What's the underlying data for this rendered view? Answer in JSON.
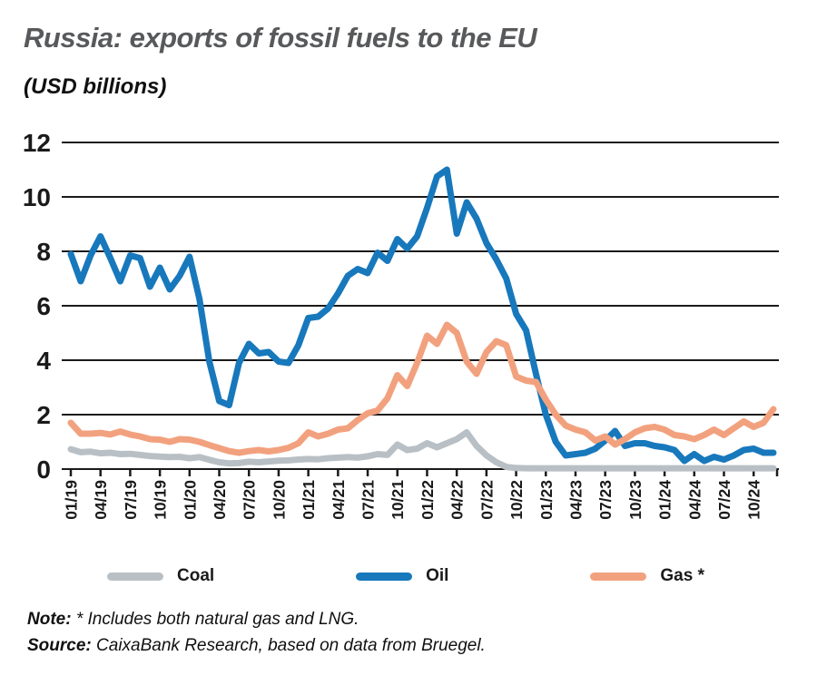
{
  "header": {
    "title": "Russia: exports of fossil fuels to the EU",
    "subtitle": "(USD billions)"
  },
  "chart_data": {
    "type": "line",
    "title": "Russia: exports of fossil fuels to the EU",
    "ylabel": "USD billions",
    "ylim": [
      0,
      12
    ],
    "yticks": [
      0,
      2,
      4,
      6,
      8,
      10,
      12
    ],
    "grid": "horizontal",
    "legend_position": "bottom",
    "x_tick_every": 3,
    "x": [
      "01/19",
      "02/19",
      "03/19",
      "04/19",
      "05/19",
      "06/19",
      "07/19",
      "08/19",
      "09/19",
      "10/19",
      "11/19",
      "12/19",
      "01/20",
      "02/20",
      "03/20",
      "04/20",
      "05/20",
      "06/20",
      "07/20",
      "08/20",
      "09/20",
      "10/20",
      "11/20",
      "12/20",
      "01/21",
      "02/21",
      "03/21",
      "04/21",
      "05/21",
      "06/21",
      "07/21",
      "08/21",
      "09/21",
      "10/21",
      "11/21",
      "12/21",
      "01/22",
      "02/22",
      "03/22",
      "04/22",
      "05/22",
      "06/22",
      "07/22",
      "08/22",
      "09/22",
      "10/22",
      "11/22",
      "12/22",
      "01/23",
      "02/23",
      "03/23",
      "04/23",
      "05/23",
      "06/23",
      "07/23",
      "08/23",
      "09/23",
      "10/23",
      "11/23",
      "12/23",
      "01/24",
      "02/24",
      "03/24",
      "04/24",
      "05/24",
      "06/24",
      "07/24",
      "08/24",
      "09/24",
      "10/24",
      "11/24",
      "12/24"
    ],
    "series": [
      {
        "name": "Coal",
        "color": "#b9c0c5",
        "values": [
          0.73,
          0.62,
          0.64,
          0.58,
          0.6,
          0.55,
          0.56,
          0.52,
          0.48,
          0.46,
          0.44,
          0.45,
          0.4,
          0.44,
          0.34,
          0.25,
          0.21,
          0.22,
          0.27,
          0.25,
          0.28,
          0.31,
          0.32,
          0.35,
          0.37,
          0.36,
          0.4,
          0.42,
          0.44,
          0.42,
          0.47,
          0.55,
          0.52,
          0.9,
          0.7,
          0.75,
          0.95,
          0.8,
          0.95,
          1.1,
          1.35,
          0.85,
          0.5,
          0.25,
          0.08,
          0.04,
          0.03,
          0.03,
          0.03,
          0.03,
          0.03,
          0.03,
          0.03,
          0.03,
          0.03,
          0.03,
          0.03,
          0.03,
          0.03,
          0.03,
          0.03,
          0.03,
          0.03,
          0.03,
          0.03,
          0.03,
          0.03,
          0.03,
          0.03,
          0.03,
          0.03,
          0.03
        ]
      },
      {
        "name": "Oil",
        "color": "#1878bc",
        "values": [
          7.9,
          6.9,
          7.85,
          8.55,
          7.75,
          6.9,
          7.85,
          7.75,
          6.7,
          7.4,
          6.6,
          7.1,
          7.8,
          6.25,
          3.95,
          2.5,
          2.35,
          3.9,
          4.6,
          4.25,
          4.3,
          3.95,
          3.9,
          4.55,
          5.55,
          5.6,
          5.9,
          6.45,
          7.1,
          7.35,
          7.2,
          7.95,
          7.65,
          8.45,
          8.1,
          8.55,
          9.6,
          10.75,
          11.0,
          8.65,
          9.8,
          9.2,
          8.3,
          7.7,
          7.0,
          5.7,
          5.1,
          3.5,
          2.0,
          1.0,
          0.5,
          0.55,
          0.6,
          0.75,
          1.05,
          1.4,
          0.85,
          0.95,
          0.95,
          0.85,
          0.8,
          0.7,
          0.3,
          0.55,
          0.3,
          0.45,
          0.35,
          0.5,
          0.7,
          0.75,
          0.6,
          0.6
        ]
      },
      {
        "name": "Gas *",
        "color": "#f2a17e",
        "values": [
          1.7,
          1.3,
          1.3,
          1.33,
          1.27,
          1.38,
          1.27,
          1.2,
          1.1,
          1.08,
          1.0,
          1.1,
          1.08,
          1.0,
          0.88,
          0.77,
          0.66,
          0.6,
          0.66,
          0.7,
          0.65,
          0.7,
          0.78,
          0.95,
          1.35,
          1.2,
          1.3,
          1.45,
          1.5,
          1.8,
          2.05,
          2.15,
          2.6,
          3.45,
          3.05,
          3.9,
          4.9,
          4.6,
          5.3,
          5.0,
          3.95,
          3.5,
          4.3,
          4.7,
          4.55,
          3.4,
          3.25,
          3.2,
          2.55,
          2.0,
          1.6,
          1.45,
          1.35,
          1.05,
          1.2,
          0.9,
          1.1,
          1.35,
          1.5,
          1.55,
          1.45,
          1.25,
          1.2,
          1.1,
          1.25,
          1.45,
          1.25,
          1.5,
          1.75,
          1.55,
          1.7,
          2.2
        ]
      }
    ]
  },
  "footer": {
    "note_label": "Note:",
    "note_text": "* Includes both natural gas and LNG.",
    "source_label": "Source:",
    "source_text": "CaixaBank Research, based on data from Bruegel."
  },
  "colors": {
    "axis": "#1a1a1a",
    "title": "#58595b"
  }
}
